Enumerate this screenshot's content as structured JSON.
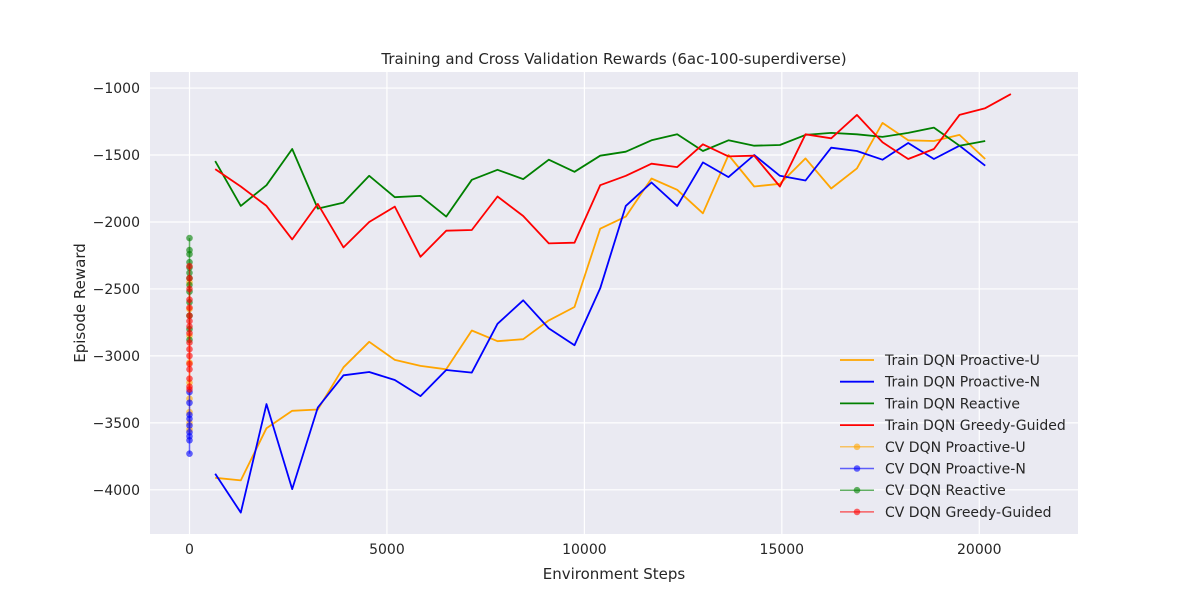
{
  "chart_data": {
    "type": "line",
    "title": "Training and Cross Validation Rewards (6ac-100-superdiverse)",
    "xlabel": "Environment Steps",
    "ylabel": "Episode Reward",
    "xlim": [
      -1000,
      22500
    ],
    "ylim": [
      -4330,
      -880
    ],
    "xticks": [
      0,
      5000,
      10000,
      15000,
      20000
    ],
    "xtick_labels": [
      "0",
      "5000",
      "10000",
      "15000",
      "20000"
    ],
    "yticks": [
      -4000,
      -3500,
      -3000,
      -2500,
      -2000,
      -1500,
      -1000
    ],
    "ytick_labels": [
      "−4000",
      "−3500",
      "−3000",
      "−2500",
      "−2000",
      "−1500",
      "−1000"
    ],
    "grid": true,
    "legend_position": "lower-right",
    "series": [
      {
        "name": "Train DQN Proactive-U",
        "kind": "line",
        "color": "#ffa500",
        "x": [
          650,
          1300,
          1950,
          2600,
          3250,
          3900,
          4550,
          5200,
          5850,
          6500,
          7150,
          7800,
          8450,
          9100,
          9750,
          10400,
          11050,
          11700,
          12350,
          13000,
          13650,
          14300,
          14950,
          15600,
          16250,
          16900,
          17550,
          18200,
          18850,
          19500,
          20150
        ],
        "y": [
          -3910,
          -3930,
          -3540,
          -3410,
          -3400,
          -3085,
          -2895,
          -3030,
          -3075,
          -3100,
          -2810,
          -2890,
          -2875,
          -2735,
          -2635,
          -2050,
          -1960,
          -1675,
          -1760,
          -1935,
          -1500,
          -1735,
          -1715,
          -1525,
          -1750,
          -1600,
          -1260,
          -1390,
          -1395,
          -1350,
          -1530
        ]
      },
      {
        "name": "Train DQN Proactive-N",
        "kind": "line",
        "color": "#0000ff",
        "x": [
          650,
          1300,
          1950,
          2600,
          3250,
          3900,
          4550,
          5200,
          5850,
          6500,
          7150,
          7800,
          8450,
          9100,
          9750,
          10400,
          11050,
          11700,
          12350,
          13000,
          13650,
          14300,
          14950,
          15600,
          16250,
          16900,
          17550,
          18200,
          18850,
          19500,
          20150
        ],
        "y": [
          -3880,
          -4170,
          -3360,
          -3995,
          -3385,
          -3145,
          -3120,
          -3180,
          -3300,
          -3105,
          -3125,
          -2760,
          -2585,
          -2795,
          -2920,
          -2495,
          -1880,
          -1705,
          -1880,
          -1555,
          -1665,
          -1500,
          -1655,
          -1690,
          -1445,
          -1470,
          -1535,
          -1410,
          -1530,
          -1430,
          -1580
        ]
      },
      {
        "name": "Train DQN Reactive",
        "kind": "line",
        "color": "#008000",
        "x": [
          650,
          1300,
          1950,
          2600,
          3250,
          3900,
          4550,
          5200,
          5850,
          6500,
          7150,
          7800,
          8450,
          9100,
          9750,
          10400,
          11050,
          11700,
          12350,
          13000,
          13650,
          14300,
          14950,
          15600,
          16250,
          16900,
          17550,
          18200,
          18850,
          19500,
          20150
        ],
        "y": [
          -1545,
          -1880,
          -1725,
          -1455,
          -1900,
          -1855,
          -1655,
          -1815,
          -1805,
          -1960,
          -1685,
          -1610,
          -1680,
          -1535,
          -1625,
          -1505,
          -1475,
          -1390,
          -1345,
          -1470,
          -1390,
          -1430,
          -1425,
          -1350,
          -1335,
          -1345,
          -1365,
          -1335,
          -1295,
          -1430,
          -1395
        ]
      },
      {
        "name": "Train DQN Greedy-Guided",
        "kind": "line",
        "color": "#ff0000",
        "x": [
          650,
          1300,
          1950,
          2600,
          3250,
          3900,
          4550,
          5200,
          5850,
          6500,
          7150,
          7800,
          8450,
          9100,
          9750,
          10400,
          11050,
          11700,
          12350,
          13000,
          13650,
          14300,
          14950,
          15600,
          16250,
          16900,
          17550,
          18200,
          18850,
          19500,
          20150,
          20800
        ],
        "y": [
          -1605,
          -1735,
          -1880,
          -2130,
          -1865,
          -2190,
          -2000,
          -1885,
          -2260,
          -2065,
          -2060,
          -1810,
          -1955,
          -2160,
          -2155,
          -1725,
          -1655,
          -1565,
          -1590,
          -1420,
          -1510,
          -1505,
          -1735,
          -1345,
          -1375,
          -1200,
          -1405,
          -1530,
          -1455,
          -1200,
          -1150,
          -1045
        ]
      },
      {
        "name": "CV DQN Proactive-U",
        "kind": "markers-line",
        "color": "#ffa500",
        "x": [
          0,
          0,
          0,
          0,
          0,
          0,
          0,
          0,
          0
        ],
        "y": [
          -2450,
          -2650,
          -2850,
          -3050,
          -3200,
          -3320,
          -3420,
          -3500,
          -3550
        ]
      },
      {
        "name": "CV DQN Proactive-N",
        "kind": "markers-line",
        "color": "#0000ff",
        "x": [
          0,
          0,
          0,
          0,
          0,
          0,
          0,
          0,
          0
        ],
        "y": [
          -3270,
          -3350,
          -3440,
          -3470,
          -3520,
          -3570,
          -3600,
          -3630,
          -3730
        ]
      },
      {
        "name": "CV DQN Reactive",
        "kind": "markers-line",
        "color": "#008000",
        "x": [
          0,
          0,
          0,
          0,
          0,
          0,
          0,
          0,
          0,
          0,
          0,
          0,
          0
        ],
        "y": [
          -2120,
          -2210,
          -2240,
          -2300,
          -2340,
          -2380,
          -2420,
          -2470,
          -2520,
          -2600,
          -2700,
          -2800,
          -2880
        ]
      },
      {
        "name": "CV DQN Greedy-Guided",
        "kind": "markers-line",
        "color": "#ff0000",
        "x": [
          0,
          0,
          0,
          0,
          0,
          0,
          0,
          0,
          0,
          0,
          0,
          0,
          0,
          0,
          0,
          0,
          0
        ],
        "y": [
          -2330,
          -2420,
          -2500,
          -2580,
          -2640,
          -2700,
          -2740,
          -2780,
          -2830,
          -2900,
          -2950,
          -3000,
          -3060,
          -3100,
          -3170,
          -3230,
          -3250
        ]
      }
    ]
  }
}
